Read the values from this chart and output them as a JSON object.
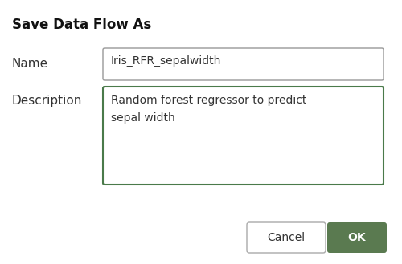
{
  "title": "Save Data Flow As",
  "name_label": "Name",
  "name_value": "Iris_RFR_sepalwidth",
  "desc_label": "Description",
  "desc_value": "Random forest regressor to predict\nsepal width",
  "cancel_text": "Cancel",
  "ok_text": "OK",
  "bg_color": "#ffffff",
  "title_fontsize": 12,
  "label_fontsize": 11,
  "field_fontsize": 10,
  "button_fontsize": 10,
  "name_box_color": "#999999",
  "desc_box_color": "#4a7a4a",
  "ok_button_color": "#5a7a50",
  "ok_text_color": "#ffffff",
  "cancel_button_color": "#ffffff",
  "cancel_text_color": "#333333",
  "cancel_border_color": "#aaaaaa"
}
